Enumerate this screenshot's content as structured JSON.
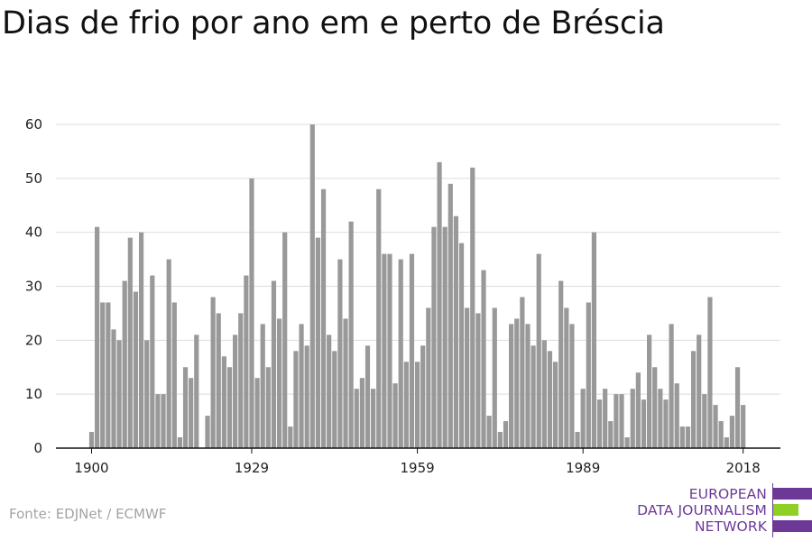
{
  "colors": {
    "bar": "#999999",
    "grid": "#dddddd",
    "axis": "#111111",
    "brand_purple": "#6c3a96",
    "brand_green": "#8fcf26"
  },
  "source": "Fonte: EDJNet / ECMWF",
  "logo": {
    "line1": "EUROPEAN",
    "line2": "DATA JOURNALISM",
    "line3": "NETWORK"
  },
  "chart_data": {
    "type": "bar",
    "title": "Dias de frio por ano em e perto de Bréscia",
    "xlabel": "",
    "ylabel": "",
    "ylim": [
      0,
      60
    ],
    "grid": true,
    "yticks": [
      0,
      10,
      20,
      30,
      40,
      50,
      60
    ],
    "xticks": [
      1900,
      1929,
      1959,
      1989,
      2018
    ],
    "x": [
      1900,
      1901,
      1902,
      1903,
      1904,
      1905,
      1906,
      1907,
      1908,
      1909,
      1910,
      1911,
      1912,
      1913,
      1914,
      1915,
      1916,
      1917,
      1918,
      1919,
      1920,
      1921,
      1922,
      1923,
      1924,
      1925,
      1926,
      1927,
      1928,
      1929,
      1930,
      1931,
      1932,
      1933,
      1934,
      1935,
      1936,
      1937,
      1938,
      1939,
      1940,
      1941,
      1942,
      1943,
      1944,
      1945,
      1946,
      1947,
      1948,
      1949,
      1950,
      1951,
      1952,
      1953,
      1954,
      1955,
      1956,
      1957,
      1958,
      1959,
      1960,
      1961,
      1962,
      1963,
      1964,
      1965,
      1966,
      1967,
      1968,
      1969,
      1970,
      1971,
      1972,
      1973,
      1974,
      1975,
      1976,
      1977,
      1978,
      1979,
      1980,
      1981,
      1982,
      1983,
      1984,
      1985,
      1986,
      1987,
      1988,
      1989,
      1990,
      1991,
      1992,
      1993,
      1994,
      1995,
      1996,
      1997,
      1998,
      1999,
      2000,
      2001,
      2002,
      2003,
      2004,
      2005,
      2006,
      2007,
      2008,
      2009,
      2010,
      2011,
      2012,
      2013,
      2014,
      2015,
      2016,
      2017,
      2018,
      2019
    ],
    "values": [
      3,
      41,
      27,
      27,
      22,
      20,
      31,
      39,
      29,
      40,
      20,
      32,
      10,
      10,
      35,
      27,
      2,
      15,
      13,
      21,
      0,
      6,
      28,
      25,
      17,
      15,
      21,
      25,
      32,
      50,
      13,
      23,
      15,
      31,
      24,
      40,
      4,
      18,
      23,
      19,
      60,
      39,
      48,
      21,
      18,
      35,
      24,
      42,
      11,
      13,
      19,
      11,
      48,
      36,
      36,
      12,
      35,
      16,
      36,
      16,
      19,
      26,
      41,
      53,
      41,
      49,
      43,
      38,
      26,
      52,
      25,
      33,
      6,
      26,
      3,
      5,
      23,
      24,
      28,
      23,
      19,
      36,
      20,
      18,
      16,
      31,
      26,
      23,
      3,
      11,
      27,
      40,
      9,
      11,
      5,
      10,
      10,
      2,
      11,
      14,
      9,
      21,
      15,
      11,
      9,
      23,
      12,
      4,
      4,
      18,
      21,
      10,
      28,
      8,
      5,
      2,
      6,
      15,
      8,
      0
    ]
  }
}
